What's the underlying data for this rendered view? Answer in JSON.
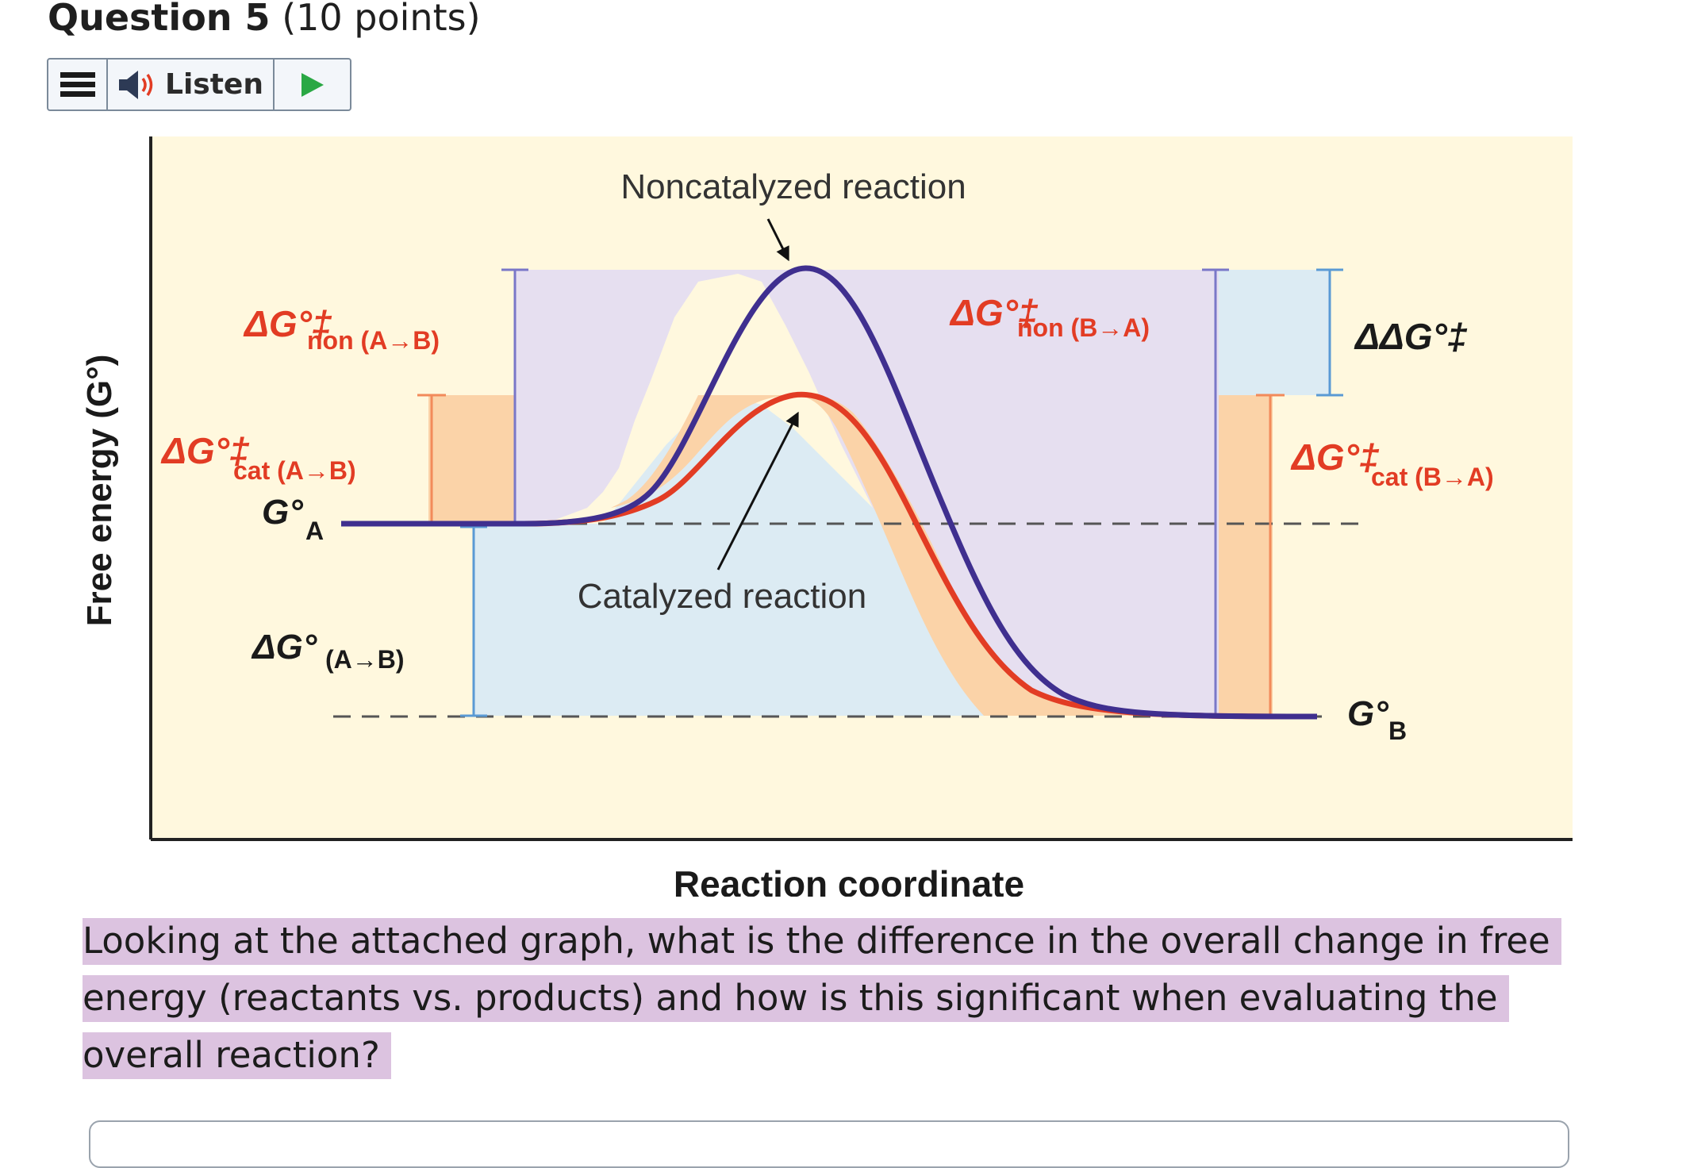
{
  "question": {
    "title": "Question 5",
    "points": "(10 points)",
    "text": "Looking at the attached graph, what is the difference in the overall change in free energy (reactants vs. products) and how is this significant when evaluating the overall reaction?"
  },
  "toolbar": {
    "listen_label": "Listen",
    "icons": [
      "menu-icon",
      "speaker-icon",
      "play-icon"
    ]
  },
  "chart_data": {
    "type": "energy-diagram",
    "xlabel": "Reaction coordinate",
    "ylabel": "Free energy (G°)",
    "curves": [
      {
        "label": "Noncatalyzed reaction",
        "color": "#3f2f8f"
      },
      {
        "label": "Catalyzed reaction",
        "color": "#e23c24"
      }
    ],
    "labels": {
      "dg_non_ab_main": "ΔG°‡",
      "dg_non_ab_sub": "non (A→B)",
      "dg_cat_ab_main": "ΔG°‡",
      "dg_cat_ab_sub": "cat (A→B)",
      "g_a_main": "G°",
      "g_a_sub": "A",
      "dg_ab_main": "ΔG°",
      "dg_ab_sub": "(A→B)",
      "dg_non_ba_main": "ΔG°‡",
      "dg_non_ba_sub": "non (B→A)",
      "ddg": "ΔΔG°‡",
      "dg_cat_ba_main": "ΔG°‡",
      "dg_cat_ba_sub": "cat (B→A)",
      "g_b_main": "G°",
      "g_b_sub": "B"
    },
    "colors": {
      "background": "#fff8de",
      "purple_region": "#e6dff0",
      "orange_region": "#fbd3a8",
      "blue_region": "#dcebf3",
      "red_label": "#e23c24",
      "black_label": "#1a1a1a"
    }
  }
}
